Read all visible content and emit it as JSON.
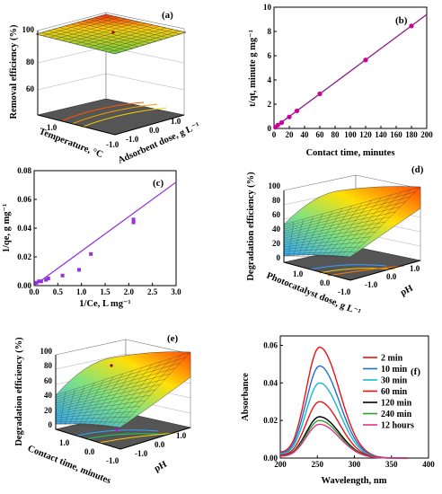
{
  "chart_data": [
    {
      "id": "a",
      "type": "surface3d",
      "panel_label": "(a)",
      "zlabel": "Removal efficiency (%)",
      "xlabel": "Temperature, °C",
      "ylabel": "Adsorbent dose, g L⁻¹",
      "z_ticks": [
        "60",
        "80",
        "100"
      ],
      "x_ticks": [
        "1.0",
        "0.0",
        "-1.0"
      ],
      "y_ticks": [
        "-1.0",
        "0.0",
        "1.0"
      ],
      "colors": {
        "high": "#ff2000",
        "mid": "#ffcc00",
        "low": "#6ccf3a"
      }
    },
    {
      "id": "b",
      "type": "scatter",
      "panel_label": "(b)",
      "xlabel": "Contact time, minutes",
      "ylabel": "t/qt, minute g mg⁻¹",
      "xlim": [
        0,
        200
      ],
      "ylim": [
        0,
        10
      ],
      "x_ticks": [
        "0",
        "20",
        "40",
        "60",
        "80",
        "100",
        "120",
        "140",
        "160",
        "180",
        "200"
      ],
      "y_ticks": [
        "0",
        "2",
        "4",
        "6",
        "8",
        "10"
      ],
      "points": [
        [
          2,
          0.1
        ],
        [
          5,
          0.28
        ],
        [
          10,
          0.48
        ],
        [
          20,
          0.95
        ],
        [
          30,
          1.45
        ],
        [
          60,
          2.85
        ],
        [
          120,
          5.65
        ],
        [
          180,
          8.45
        ]
      ],
      "fit_line": [
        [
          0,
          0.05
        ],
        [
          200,
          9.4
        ]
      ],
      "color": "#cc0099"
    },
    {
      "id": "c",
      "type": "scatter",
      "panel_label": "(c)",
      "xlabel": "1/Ce, L mg⁻¹",
      "ylabel": "1/qe, g mg⁻¹",
      "xlim": [
        0,
        3.0
      ],
      "ylim": [
        0,
        0.08
      ],
      "x_ticks": [
        "0.0",
        "0.5",
        "1.0",
        "1.5",
        "2.0",
        "2.5",
        "3.0"
      ],
      "y_ticks": [
        "0.00",
        "0.02",
        "0.04",
        "0.06",
        "0.08"
      ],
      "points": [
        [
          0.05,
          0.002
        ],
        [
          0.1,
          0.003
        ],
        [
          0.15,
          0.003
        ],
        [
          0.25,
          0.004
        ],
        [
          0.3,
          0.005
        ],
        [
          0.6,
          0.007
        ],
        [
          0.95,
          0.011
        ],
        [
          1.2,
          0.022
        ],
        [
          2.1,
          0.044
        ],
        [
          2.1,
          0.046
        ]
      ],
      "fit_line": [
        [
          0,
          0.0
        ],
        [
          3.0,
          0.072
        ]
      ],
      "color": "#9a2fe0"
    },
    {
      "id": "d",
      "type": "surface3d",
      "panel_label": "(d)",
      "zlabel": "Degradation efficiency (%)",
      "xlabel": "Photocatalyst dose, g L⁻¹",
      "ylabel": "pH",
      "z_ticks": [
        "0",
        "20",
        "40",
        "60",
        "80",
        "100"
      ],
      "x_ticks": [
        "1.0",
        "0.0",
        "-1.0"
      ],
      "y_ticks": [
        "-1.0",
        "0.0",
        "1.0"
      ],
      "colors": {
        "high": "#ff4400",
        "mid": "#ffe000",
        "low": "#2aa8ff"
      }
    },
    {
      "id": "e",
      "type": "surface3d",
      "panel_label": "(e)",
      "zlabel": "Degradation efficiency (%)",
      "xlabel": "Contact time, minutes",
      "ylabel": "pH",
      "z_ticks": [
        "0",
        "20",
        "40",
        "60",
        "80",
        "100"
      ],
      "x_ticks": [
        "1.0",
        "0.0",
        "-1.0"
      ],
      "y_ticks": [
        "-1.0",
        "0.0",
        "1.0"
      ],
      "colors": {
        "high": "#ff4400",
        "mid": "#ffe000",
        "low": "#2aa8ff"
      }
    },
    {
      "id": "f",
      "type": "line",
      "panel_label": "(f)",
      "xlabel": "Wavelength, nm",
      "ylabel": "Absorbance",
      "xlim": [
        200,
        400
      ],
      "ylim": [
        0,
        0.065
      ],
      "x_ticks": [
        "200",
        "250",
        "300",
        "350",
        "400"
      ],
      "y_ticks": [
        "0.00",
        "0.02",
        "0.04",
        "0.06"
      ],
      "series": [
        {
          "name": "2 min",
          "color": "#ee1111",
          "peak": 0.059
        },
        {
          "name": "10 min",
          "color": "#1f6fd0",
          "peak": 0.049
        },
        {
          "name": "30 min",
          "color": "#19b8c8",
          "peak": 0.04
        },
        {
          "name": "60 min",
          "color": "#ee1111",
          "peak": 0.03
        },
        {
          "name": "120 min",
          "color": "#000000",
          "peak": 0.022
        },
        {
          "name": "240 min",
          "color": "#2e9e2e",
          "peak": 0.02
        },
        {
          "name": "12 hours",
          "color": "#e8308c",
          "peak": 0.018
        }
      ]
    }
  ]
}
